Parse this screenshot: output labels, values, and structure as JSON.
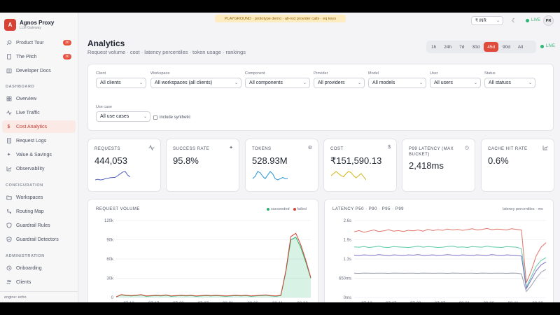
{
  "brand": {
    "logo_letter": "A",
    "name": "Agnos Proxy",
    "subtitle": "LLM Gateway"
  },
  "sidebar": {
    "top_items": [
      {
        "label": "Product Tour",
        "icon": "rocket-icon",
        "badge": "30"
      },
      {
        "label": "The Pitch",
        "icon": "document-icon",
        "badge": "30"
      },
      {
        "label": "Developer Docs",
        "icon": "book-icon"
      }
    ],
    "sections": [
      {
        "title": "DASHBOARD",
        "items": [
          {
            "label": "Overview",
            "icon": "grid-icon"
          },
          {
            "label": "Live Traffic",
            "icon": "activity-icon"
          },
          {
            "label": "Cost Analytics",
            "icon": "dollar-icon",
            "active": true
          },
          {
            "label": "Request Logs",
            "icon": "log-icon"
          },
          {
            "label": "Value & Savings",
            "icon": "sparkle-icon"
          },
          {
            "label": "Observability",
            "icon": "chart-icon"
          }
        ]
      },
      {
        "title": "CONFIGURATION",
        "items": [
          {
            "label": "Workspaces",
            "icon": "folder-icon"
          },
          {
            "label": "Routing Map",
            "icon": "map-icon"
          },
          {
            "label": "Guardrail Rules",
            "icon": "shield-icon"
          },
          {
            "label": "Guardrail Detectors",
            "icon": "shield-check-icon"
          }
        ]
      },
      {
        "title": "ADMINISTRATION",
        "items": [
          {
            "label": "Onboarding",
            "icon": "onboard-icon"
          },
          {
            "label": "Clients",
            "icon": "users-icon"
          }
        ]
      }
    ],
    "footer": "engine: echo"
  },
  "topbar": {
    "banner": "PLAYGROUND · prototype demo · all-rod provider calls · eq keys",
    "currency": "₹ INR",
    "live": "LIVE",
    "avatar": "PR"
  },
  "header": {
    "title": "Analytics",
    "subtitle": "Request volume · cost · latency percentiles · token usage · rankings",
    "ranges": [
      "1h",
      "24h",
      "7d",
      "30d",
      "45d",
      "90d",
      "All"
    ],
    "active_range": "45d",
    "live": "LIVE"
  },
  "filters": {
    "row1": [
      {
        "label": "Client",
        "value": "All clients"
      },
      {
        "label": "Workspace",
        "value": "All workspaces (all clients)"
      },
      {
        "label": "Component",
        "value": "All components"
      },
      {
        "label": "Provider",
        "value": "All providers"
      },
      {
        "label": "Model",
        "value": "All models"
      },
      {
        "label": "User",
        "value": "All users"
      },
      {
        "label": "Status",
        "value": "All statuss"
      }
    ],
    "row2": [
      {
        "label": "Use case",
        "value": "All use cases"
      }
    ],
    "synthetic_label": "include synthetic"
  },
  "kpis": [
    {
      "label": "REQUESTS",
      "value": "444,053",
      "icon": "activity-icon",
      "color": "#4f5fbf",
      "spark": [
        5,
        5.5,
        5,
        5.2,
        6,
        6.3,
        6.8,
        7,
        7.1,
        8.5,
        10,
        11.5,
        12,
        9,
        7.5
      ]
    },
    {
      "label": "SUCCESS RATE",
      "value": "95.8%",
      "icon": "sparkle-icon"
    },
    {
      "label": "TOKENS",
      "value": "528.93M",
      "icon": "gear-icon",
      "color": "#1f8fd6",
      "spark": [
        8,
        9,
        11,
        10.5,
        9,
        8,
        9.5,
        11,
        10,
        8,
        7.5,
        8,
        8.5,
        8,
        8
      ]
    },
    {
      "label": "COST",
      "value": "₹151,590.13",
      "icon": "dollar-icon",
      "color": "#d4b40e",
      "spark": [
        9,
        10,
        11,
        10,
        9,
        8.5,
        10,
        11,
        10.5,
        9,
        8,
        9,
        10,
        8.5,
        7
      ]
    },
    {
      "label": "P99 LATENCY (MAX BUCKET)",
      "value": "2,418ms",
      "icon": "clock-icon"
    },
    {
      "label": "CACHE HIT RATE",
      "value": "0.6%",
      "icon": "chart-icon"
    }
  ],
  "request_chart": {
    "title": "REQUEST VOLUME",
    "legend": [
      {
        "name": "succeeded",
        "color": "#2bb673"
      },
      {
        "name": "failed",
        "color": "#d64233"
      }
    ]
  },
  "latency_chart": {
    "title": "LATENCY P50 · P90 · P95 · P99",
    "note": "latency percentiles · ms"
  },
  "chart_data": [
    {
      "type": "area",
      "title": "REQUEST VOLUME",
      "x_ticks": [
        "07-12",
        "07-17",
        "07-22",
        "07-27",
        "08-01",
        "08-06",
        "08-11",
        "08-22"
      ],
      "y_ticks": [
        "0",
        "30k",
        "60k",
        "90k",
        "120k"
      ],
      "ylim": [
        0,
        120000
      ],
      "legend_position": "top-right",
      "series": [
        {
          "name": "succeeded",
          "color": "#2bb673",
          "values": [
            1000,
            4000,
            3000,
            2500,
            3000,
            4000,
            2000,
            2500,
            3000,
            2500,
            3500,
            2000,
            2500,
            3000,
            2500,
            3000,
            2000,
            2500,
            3000,
            2500,
            3000,
            2500,
            2000,
            2500,
            3000,
            2500,
            3000,
            2000,
            2500,
            3000,
            3500,
            2500,
            2000,
            3000,
            40000,
            90000,
            94000,
            78000,
            55000,
            30000
          ]
        },
        {
          "name": "failed",
          "color": "#d64233",
          "values": [
            1000,
            4500,
            3500,
            3000,
            3500,
            4500,
            2500,
            3000,
            3500,
            3000,
            4000,
            2500,
            3000,
            3500,
            3000,
            3500,
            2500,
            3000,
            3500,
            3000,
            3500,
            3000,
            2500,
            3000,
            3500,
            3000,
            3500,
            2500,
            3000,
            3500,
            4000,
            3000,
            2500,
            3500,
            42000,
            95000,
            100000,
            82000,
            58000,
            31000
          ]
        }
      ]
    },
    {
      "type": "line",
      "title": "LATENCY P50 · P90 · P95 · P99",
      "x_ticks": [
        "07-12",
        "07-17",
        "07-22",
        "07-27",
        "08-01",
        "08-06",
        "08-11",
        "08-22"
      ],
      "y_ticks": [
        "0ms",
        "650ms",
        "1.3s",
        "1.9s",
        "2.6s"
      ],
      "ylim": [
        0,
        2600
      ],
      "series": [
        {
          "name": "p99",
          "color": "#e0736a",
          "values": [
            2220,
            2260,
            2200,
            2240,
            2280,
            2230,
            2250,
            2290,
            2240,
            2260,
            2230,
            2270,
            2250,
            2280,
            2240,
            2300,
            2260,
            2290,
            2270,
            2310,
            2280,
            2300,
            2270,
            2290,
            2320,
            2280,
            2300,
            2330,
            2290,
            2310,
            2300,
            2280,
            2320,
            2300,
            2280,
            500,
            900,
            1400,
            1700,
            1850
          ]
        },
        {
          "name": "p95",
          "color": "#5dc9a8",
          "values": [
            1710,
            1700,
            1720,
            1690,
            1710,
            1730,
            1700,
            1690,
            1720,
            1710,
            1700,
            1690,
            1710,
            1730,
            1700,
            1720,
            1710,
            1690,
            1700,
            1720,
            1730,
            1700,
            1710,
            1690,
            1720,
            1710,
            1700,
            1730,
            1710,
            1700,
            1690,
            1720,
            1710,
            1700,
            1650,
            350,
            700,
            1050,
            1250,
            1350
          ]
        },
        {
          "name": "p90",
          "color": "#7b6dc9",
          "values": [
            1430,
            1420,
            1440,
            1430,
            1420,
            1450,
            1430,
            1410,
            1440,
            1430,
            1420,
            1440,
            1430,
            1450,
            1420,
            1430,
            1440,
            1420,
            1430,
            1450,
            1430,
            1420,
            1440,
            1430,
            1420,
            1440,
            1430,
            1420,
            1450,
            1430,
            1420,
            1440,
            1430,
            1420,
            1400,
            300,
            600,
            900,
            1100,
            1200
          ]
        },
        {
          "name": "p50",
          "color": "#9a9db0",
          "values": [
            820,
            815,
            825,
            820,
            818,
            822,
            820,
            815,
            825,
            820,
            818,
            822,
            820,
            815,
            825,
            820,
            818,
            822,
            820,
            815,
            825,
            820,
            818,
            822,
            820,
            815,
            825,
            820,
            818,
            822,
            820,
            815,
            825,
            820,
            800,
            200,
            400,
            650,
            850,
            950
          ]
        }
      ]
    }
  ]
}
